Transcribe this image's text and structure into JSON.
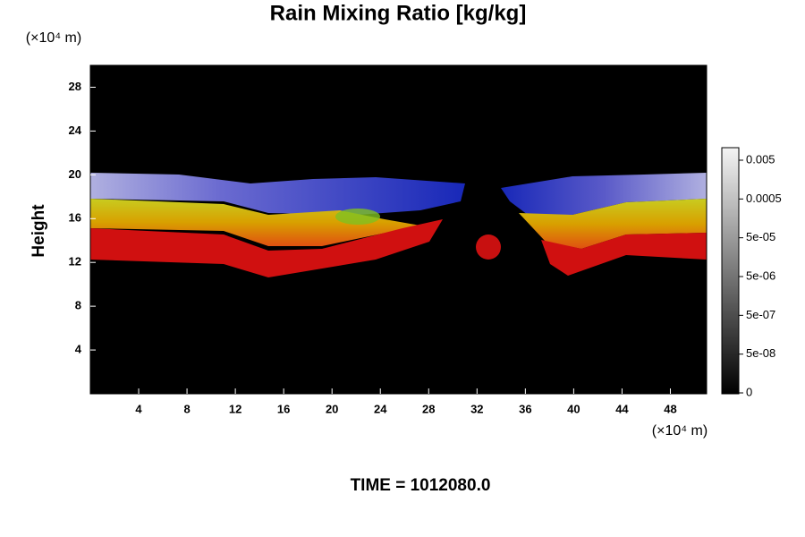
{
  "chart_data": {
    "type": "contour",
    "title": "Rain Mixing Ratio [kg/kg]",
    "y_label": "Height",
    "y_unit": "(×10⁴ m)",
    "x_unit": "(×10⁴ m)",
    "time_label": "TIME = 1012080.0",
    "xlim": [
      0,
      51
    ],
    "xticks": [
      4,
      8,
      12,
      16,
      20,
      24,
      28,
      32,
      36,
      40,
      44,
      48
    ],
    "ylim": [
      0,
      30
    ],
    "yticks": [
      4,
      8,
      12,
      16,
      20,
      24,
      28
    ],
    "colorbar_ticks": [
      0,
      {
        "value": 5e-08,
        "label": "5e-08"
      },
      {
        "value": 5e-07,
        "label": "5e-07"
      },
      {
        "value": 5e-06,
        "label": "5e-06"
      },
      {
        "value": 5e-05,
        "label": "5e-05"
      },
      0.0005,
      0.005
    ]
  }
}
